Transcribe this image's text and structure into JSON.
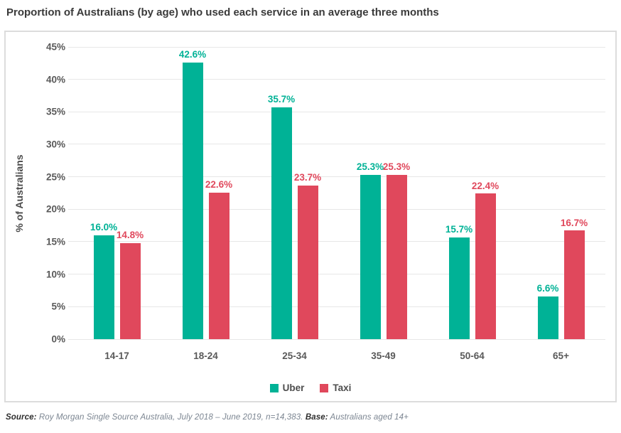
{
  "title": "Proportion of Australians (by age) who used each service in an average three months",
  "chart_data": {
    "type": "bar",
    "categories": [
      "14-17",
      "18-24",
      "25-34",
      "35-49",
      "50-64",
      "65+"
    ],
    "series": [
      {
        "name": "Uber",
        "color": "#00b296",
        "values": [
          16.0,
          42.6,
          35.7,
          25.3,
          15.7,
          6.6
        ]
      },
      {
        "name": "Taxi",
        "color": "#e0485c",
        "values": [
          14.8,
          22.6,
          23.7,
          25.3,
          22.4,
          16.7
        ]
      }
    ],
    "title": "Proportion of Australians (by age) who used each service in an average three months",
    "xlabel": "",
    "ylabel": "% of Australians",
    "ylim": [
      0,
      45
    ],
    "ytick_step": 5,
    "ytick_suffix": "%",
    "value_label_suffix": "%",
    "grid": true,
    "legend_position": "bottom"
  },
  "footer": {
    "source_label": "Source:",
    "source_text": " Roy Morgan Single Source Australia, July 2018 – June 2019, n=14,383. ",
    "base_label": "Base:",
    "base_text": " Australians aged 14+"
  }
}
